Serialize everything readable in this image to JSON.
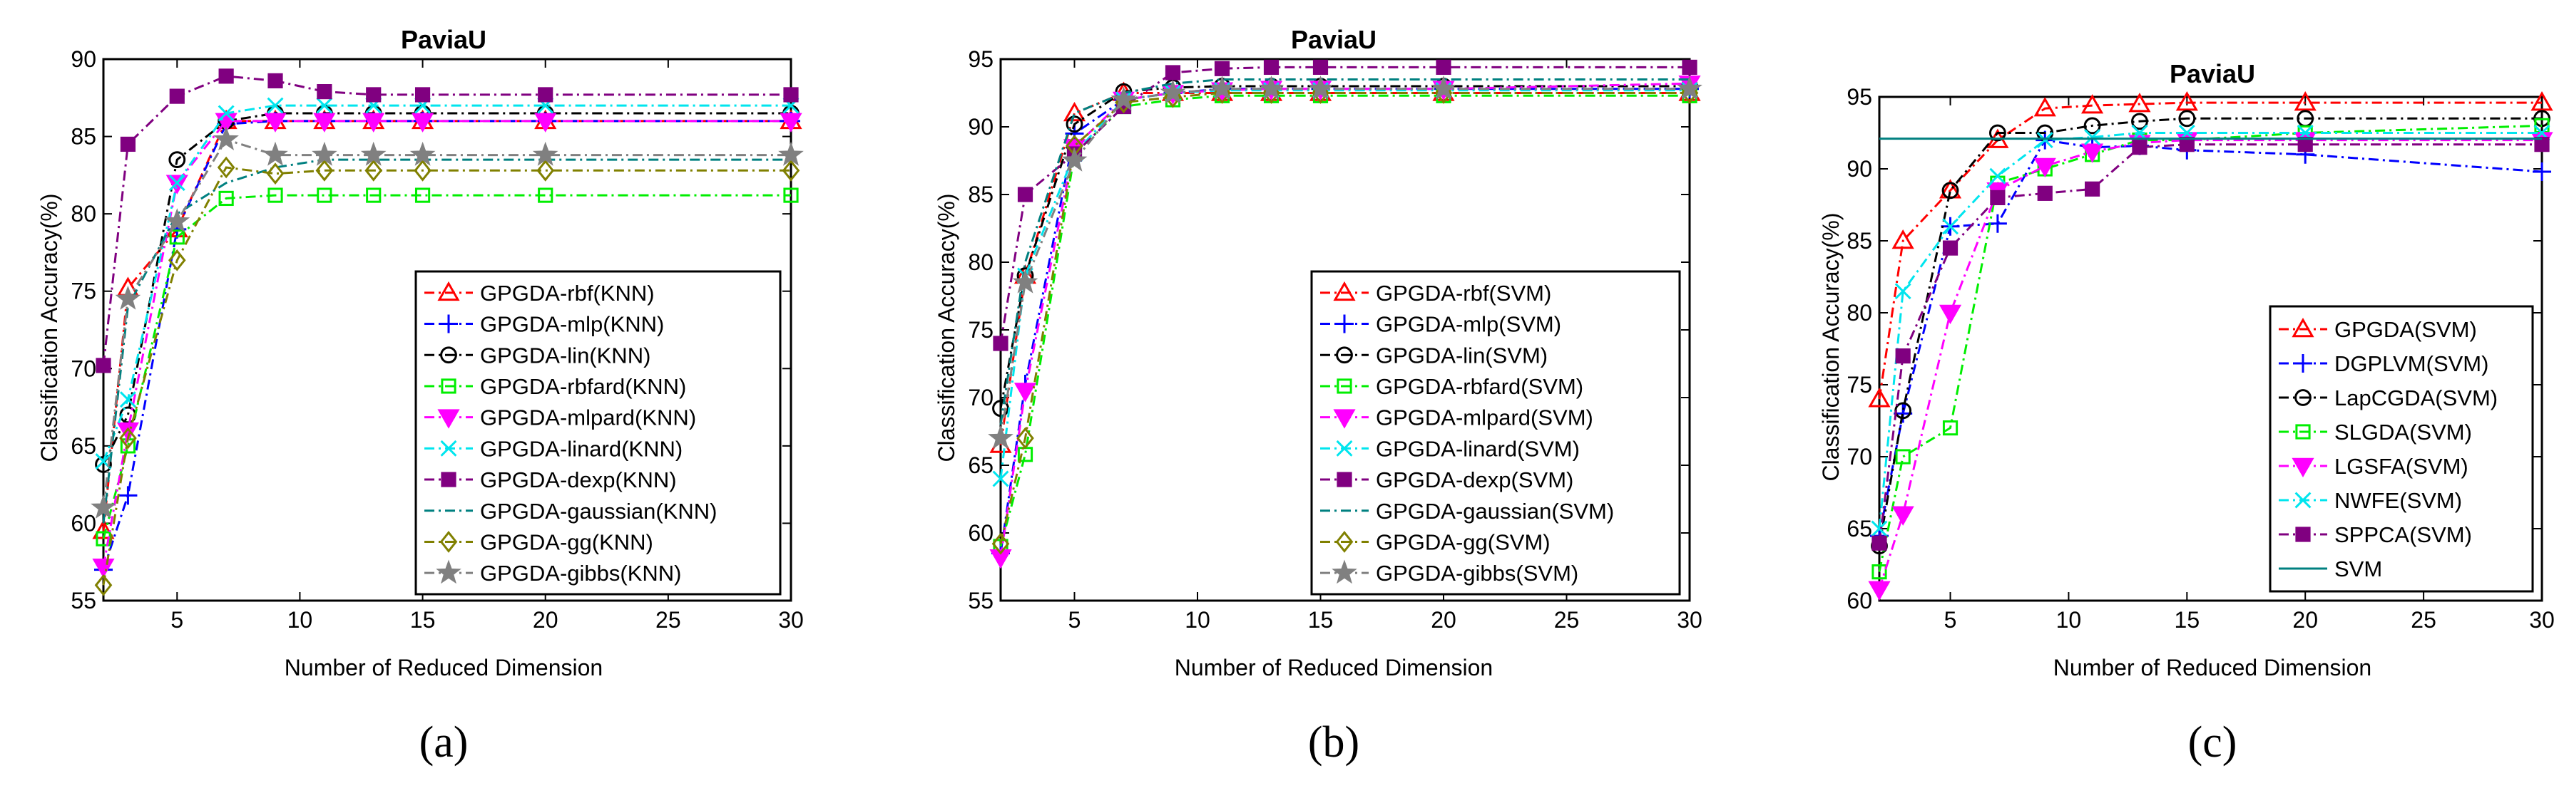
{
  "chart_data": [
    {
      "type": "line",
      "panel_label": "(a)",
      "title": "PaviaU",
      "xlabel": "Number of Reduced Dimension",
      "ylabel": "Classification Accuracy(%)",
      "xlim": [
        2,
        30
      ],
      "ylim": [
        55,
        90
      ],
      "xticks": [
        5,
        10,
        15,
        20,
        25,
        30
      ],
      "yticks": [
        55,
        60,
        65,
        70,
        75,
        80,
        85,
        90
      ],
      "legend_position": "right",
      "x": [
        2,
        3,
        5,
        7,
        9,
        11,
        13,
        15,
        20,
        30
      ],
      "series": [
        {
          "name": "GPGDA-rbf(KNN)",
          "color": "#ff0000",
          "marker": "triangle",
          "dash": "dashdot",
          "values": [
            59.5,
            75.2,
            79.0,
            86.0,
            86.0,
            86.0,
            86.0,
            86.0,
            86.0,
            86.0
          ]
        },
        {
          "name": "GPGDA-mlp(KNN)",
          "color": "#0000ff",
          "marker": "plus",
          "dash": "dashdot",
          "values": [
            57.0,
            61.8,
            79.0,
            85.8,
            86.0,
            86.0,
            86.0,
            86.0,
            86.0,
            86.0
          ]
        },
        {
          "name": "GPGDA-lin(KNN)",
          "color": "#000000",
          "marker": "circle",
          "dash": "dashdot",
          "values": [
            63.8,
            67.0,
            83.5,
            86.0,
            86.5,
            86.5,
            86.5,
            86.5,
            86.5,
            86.5
          ]
        },
        {
          "name": "GPGDA-rbfard(KNN)",
          "color": "#00ee00",
          "marker": "square",
          "dash": "dashdot",
          "values": [
            59.0,
            65.0,
            78.5,
            81.0,
            81.2,
            81.2,
            81.2,
            81.2,
            81.2,
            81.2
          ]
        },
        {
          "name": "GPGDA-mlpard(KNN)",
          "color": "#ff00ff",
          "marker": "triangle-down",
          "dash": "dashdot",
          "values": [
            57.2,
            66.0,
            82.0,
            86.0,
            86.0,
            86.0,
            86.0,
            86.0,
            86.0,
            86.0
          ]
        },
        {
          "name": "GPGDA-linard(KNN)",
          "color": "#00e5ee",
          "marker": "x",
          "dash": "dashdot",
          "values": [
            64.0,
            68.0,
            82.0,
            86.5,
            87.0,
            87.0,
            87.0,
            87.0,
            87.0,
            87.0
          ]
        },
        {
          "name": "GPGDA-dexp(KNN)",
          "color": "#800080",
          "marker": "square",
          "dash": "dashdot",
          "values": [
            70.2,
            84.5,
            87.6,
            88.9,
            88.6,
            87.9,
            87.7,
            87.7,
            87.7,
            87.7
          ]
        },
        {
          "name": "GPGDA-gaussian(KNN)",
          "color": "#008080",
          "marker": "none",
          "dash": "dashdot",
          "values": [
            60.0,
            74.0,
            80.0,
            82.0,
            83.0,
            83.5,
            83.5,
            83.5,
            83.5,
            83.5
          ]
        },
        {
          "name": "GPGDA-gg(KNN)",
          "color": "#808000",
          "marker": "diamond",
          "dash": "dashdot",
          "values": [
            56.0,
            65.5,
            77.0,
            83.0,
            82.6,
            82.8,
            82.8,
            82.8,
            82.8,
            82.8
          ]
        },
        {
          "name": "GPGDA-gibbs(KNN)",
          "color": "#808080",
          "marker": "star",
          "dash": "dashdot",
          "values": [
            61.0,
            74.5,
            79.5,
            84.8,
            83.8,
            83.8,
            83.8,
            83.8,
            83.8,
            83.8
          ]
        }
      ]
    },
    {
      "type": "line",
      "panel_label": "(b)",
      "title": "PaviaU",
      "xlabel": "Number of Reduced Dimension",
      "ylabel": "Classification Accuracy(%)",
      "xlim": [
        2,
        30
      ],
      "ylim": [
        55,
        95
      ],
      "xticks": [
        5,
        10,
        15,
        20,
        25,
        30
      ],
      "yticks": [
        55,
        60,
        65,
        70,
        75,
        80,
        85,
        90,
        95
      ],
      "legend_position": "right",
      "x": [
        2,
        3,
        5,
        7,
        9,
        11,
        13,
        15,
        20,
        30
      ],
      "series": [
        {
          "name": "GPGDA-rbf(SVM)",
          "color": "#ff0000",
          "marker": "triangle",
          "dash": "dashdot",
          "values": [
            66.5,
            79.0,
            91.0,
            92.5,
            92.5,
            92.5,
            92.5,
            92.5,
            92.5,
            92.5
          ]
        },
        {
          "name": "GPGDA-mlp(SVM)",
          "color": "#0000ff",
          "marker": "plus",
          "dash": "dashdot",
          "values": [
            58.5,
            71.0,
            89.5,
            92.0,
            92.5,
            92.8,
            92.8,
            92.8,
            92.8,
            92.8
          ]
        },
        {
          "name": "GPGDA-lin(SVM)",
          "color": "#000000",
          "marker": "circle",
          "dash": "dashdot",
          "values": [
            69.2,
            79.0,
            90.2,
            92.6,
            92.9,
            93.0,
            93.0,
            93.0,
            93.0,
            93.0
          ]
        },
        {
          "name": "GPGDA-rbfard(SVM)",
          "color": "#00ee00",
          "marker": "square",
          "dash": "dashdot",
          "values": [
            59.0,
            65.8,
            88.0,
            91.5,
            92.0,
            92.3,
            92.3,
            92.3,
            92.3,
            92.3
          ]
        },
        {
          "name": "GPGDA-mlpard(SVM)",
          "color": "#ff00ff",
          "marker": "triangle-down",
          "dash": "dashdot",
          "values": [
            58.2,
            70.5,
            88.5,
            92.0,
            92.5,
            92.7,
            92.8,
            92.8,
            92.8,
            93.2
          ]
        },
        {
          "name": "GPGDA-linard(SVM)",
          "color": "#00e5ee",
          "marker": "x",
          "dash": "dashdot",
          "values": [
            64.0,
            79.0,
            88.0,
            92.0,
            92.5,
            92.7,
            92.7,
            92.7,
            92.7,
            92.7
          ]
        },
        {
          "name": "GPGDA-dexp(SVM)",
          "color": "#800080",
          "marker": "square",
          "dash": "dashdot",
          "values": [
            74.0,
            85.0,
            88.0,
            91.5,
            94.0,
            94.3,
            94.4,
            94.4,
            94.4,
            94.4
          ]
        },
        {
          "name": "GPGDA-gaussian(SVM)",
          "color": "#008080",
          "marker": "none",
          "dash": "dashdot",
          "values": [
            68.0,
            80.0,
            91.0,
            92.5,
            93.2,
            93.5,
            93.5,
            93.5,
            93.5,
            93.5
          ]
        },
        {
          "name": "GPGDA-gg(SVM)",
          "color": "#808000",
          "marker": "diamond",
          "dash": "dashdot",
          "values": [
            59.2,
            67.0,
            88.6,
            91.8,
            92.2,
            92.5,
            92.5,
            92.5,
            92.5,
            92.5
          ]
        },
        {
          "name": "GPGDA-gibbs(SVM)",
          "color": "#808080",
          "marker": "star",
          "dash": "dashdot",
          "values": [
            67.0,
            78.5,
            87.5,
            92.0,
            92.5,
            92.8,
            92.8,
            92.8,
            92.8,
            92.8
          ]
        }
      ]
    },
    {
      "type": "line",
      "panel_label": "(c)",
      "title": "PaviaU",
      "xlabel": "Number of Reduced Dimension",
      "ylabel": "Classification Accuracy(%)",
      "xlim": [
        2,
        30
      ],
      "ylim": [
        60,
        95
      ],
      "xticks": [
        5,
        10,
        15,
        20,
        25,
        30
      ],
      "yticks": [
        60,
        65,
        70,
        75,
        80,
        85,
        90,
        95
      ],
      "legend_position": "right",
      "x": [
        2,
        3,
        5,
        7,
        9,
        11,
        13,
        15,
        20,
        30
      ],
      "series": [
        {
          "name": "GPGDA(SVM)",
          "color": "#ff0000",
          "marker": "triangle",
          "dash": "dashdot",
          "values": [
            74.0,
            85.0,
            88.5,
            92.0,
            94.2,
            94.4,
            94.5,
            94.6,
            94.6,
            94.6
          ]
        },
        {
          "name": "DGPLVM(SVM)",
          "color": "#0000ff",
          "marker": "plus",
          "dash": "dashdot",
          "values": [
            64.5,
            73.0,
            86.0,
            86.2,
            92.0,
            91.5,
            91.6,
            91.3,
            91.0,
            89.8
          ]
        },
        {
          "name": "LapCGDA(SVM)",
          "color": "#000000",
          "marker": "circle",
          "dash": "dashdot",
          "values": [
            63.8,
            73.2,
            88.5,
            92.5,
            92.5,
            93.0,
            93.3,
            93.5,
            93.5,
            93.5
          ]
        },
        {
          "name": "SLGDA(SVM)",
          "color": "#00ee00",
          "marker": "square",
          "dash": "dashdot",
          "values": [
            62.0,
            70.0,
            72.0,
            89.0,
            90.0,
            91.0,
            92.0,
            92.0,
            92.5,
            93.0
          ]
        },
        {
          "name": "LGSFA(SVM)",
          "color": "#ff00ff",
          "marker": "triangle-down",
          "dash": "dashdot",
          "values": [
            60.8,
            66.0,
            80.0,
            88.5,
            90.2,
            91.2,
            91.8,
            92.0,
            92.0,
            92.0
          ]
        },
        {
          "name": "NWFE(SVM)",
          "color": "#00e5ee",
          "marker": "x",
          "dash": "dashdot",
          "values": [
            65.0,
            81.5,
            86.0,
            89.5,
            92.0,
            92.2,
            92.5,
            92.5,
            92.5,
            92.5
          ]
        },
        {
          "name": "SPPCA(SVM)",
          "color": "#800080",
          "marker": "square",
          "dash": "dashdot",
          "values": [
            64.0,
            77.0,
            84.5,
            88.0,
            88.3,
            88.6,
            91.5,
            91.7,
            91.7,
            91.7
          ]
        },
        {
          "name": "SVM",
          "color": "#008080",
          "marker": "none",
          "dash": "solid",
          "values": [
            92.1,
            92.1,
            92.1,
            92.1,
            92.1,
            92.1,
            92.1,
            92.1,
            92.1,
            92.1
          ]
        }
      ]
    }
  ]
}
